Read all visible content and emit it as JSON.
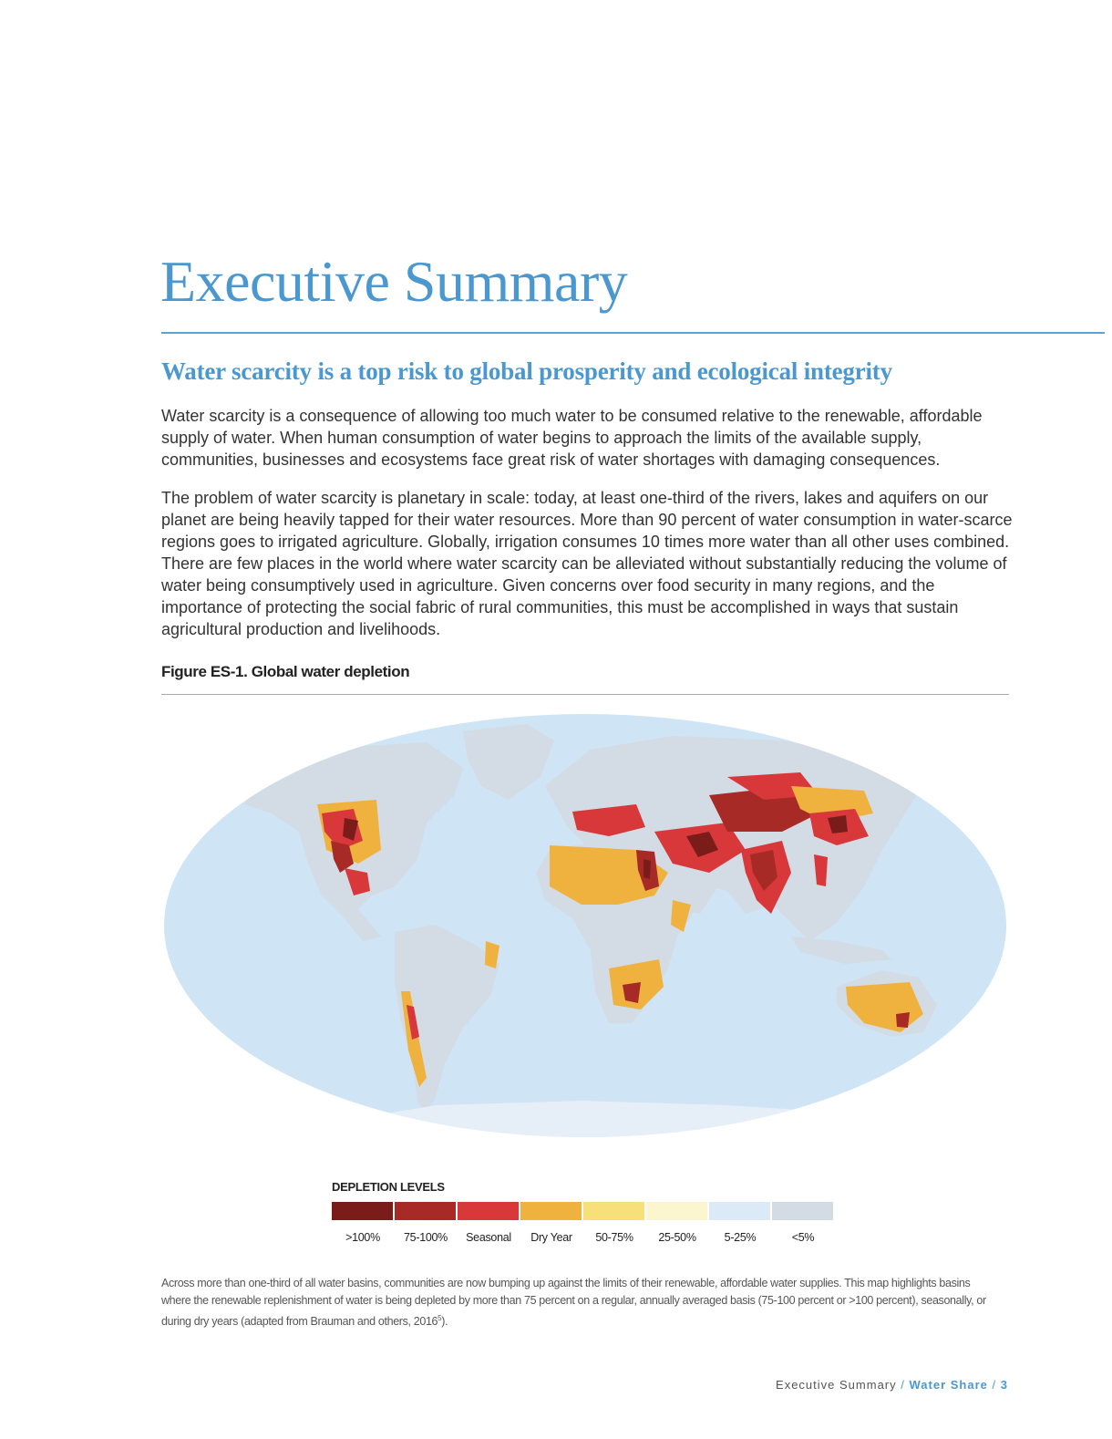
{
  "page": {
    "title": "Executive Summary",
    "section_heading": "Water scarcity is a top risk to global prosperity and ecological integrity",
    "paragraphs": [
      "Water scarcity is a consequence of allowing too much water to be consumed relative to the renewable, affordable supply of water. When human consumption of water begins to approach the limits of the available supply, communities, businesses and ecosystems face great risk of water shortages with damaging consequences.",
      "The problem of water scarcity is planetary in scale: today, at least one-third of the rivers, lakes and aquifers on our planet are being heavily tapped for their water resources. More than 90 percent of water consumption in water-scarce regions goes to irrigated agriculture. Globally, irrigation consumes 10 times more water than all other uses combined. There are few places in the world where water scarcity can be alleviated without substantially reducing the volume of water being consumptively used in agriculture. Given concerns over food security in many regions, and the importance of protecting the social fabric of rural communities, this must be accomplished in ways that sustain agricultural production and livelihoods."
    ]
  },
  "figure": {
    "title": "Figure ES-1. Global water depletion",
    "legend_title": "DEPLETION LEVELS",
    "legend": [
      {
        "label": ">100%",
        "color": "#7a1d1a"
      },
      {
        "label": "75-100%",
        "color": "#a82a26"
      },
      {
        "label": "Seasonal",
        "color": "#d9383a"
      },
      {
        "label": "Dry Year",
        "color": "#f0b23f"
      },
      {
        "label": "50-75%",
        "color": "#f7df7a"
      },
      {
        "label": "25-50%",
        "color": "#fbf6cf"
      },
      {
        "label": "5-25%",
        "color": "#dbeaf6"
      },
      {
        "label": "<5%",
        "color": "#d3dbe5"
      }
    ],
    "colors": {
      "ocean": "#cfe4f4",
      "land": "#d3dbe5"
    },
    "caption_text": "Across more than one-third of all water basins, communities are now bumping up against the limits of their renewable, affordable water supplies. This map highlights basins where the renewable replenishment of water is being depleted by more than 75 percent on a regular, annually averaged basis (75-100 percent or >100 percent), seasonally, or during dry years (adapted from Brauman and others, 2016",
    "caption_superscript": "5",
    "caption_end": ")."
  },
  "footer": {
    "section": "Executive Summary",
    "separator": "/",
    "brand": "Water Share",
    "page_number": "3"
  }
}
